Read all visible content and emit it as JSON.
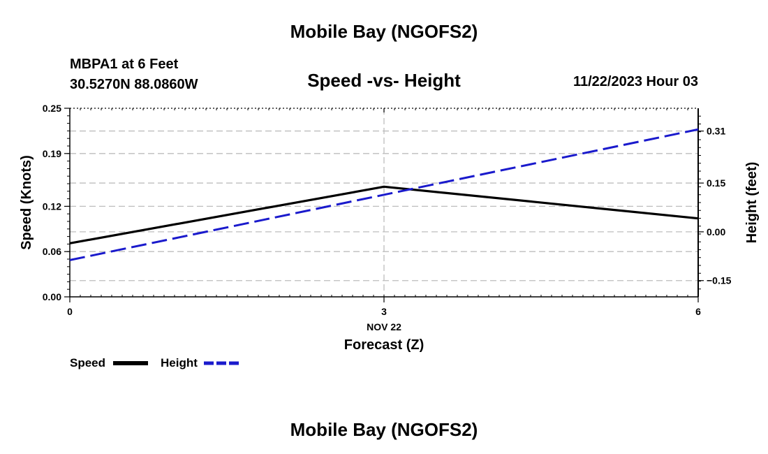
{
  "page": {
    "title": "Mobile Bay (NGOFS2)",
    "title_repeat": "Mobile Bay (NGOFS2)",
    "station_line1": "MBPA1 at 6 Feet",
    "station_line2": "30.5270N  88.0860W",
    "datetime": "11/22/2023 Hour 03"
  },
  "chart_data": {
    "type": "line",
    "title": "Speed -vs- Height",
    "xlabel": "Forecast (Z)",
    "x_date_label": "NOV 22",
    "ylabel_left": "Speed (Knots)",
    "ylabel_right": "Height (feet)",
    "xlim": [
      0,
      6
    ],
    "ylim_left": [
      0,
      0.25
    ],
    "ylim_right": [
      -0.2,
      0.38
    ],
    "x_ticks": [
      0,
      3,
      6
    ],
    "x_tick_labels": [
      "0",
      "3",
      "6"
    ],
    "y_left_ticks": [
      0.0,
      0.06,
      0.12,
      0.19,
      0.25
    ],
    "y_left_tick_labels": [
      "0.00",
      "0.06",
      "0.12",
      "0.19",
      "0.25"
    ],
    "y_right_ticks": [
      -0.15,
      0.0,
      0.15,
      0.31
    ],
    "y_right_tick_labels": [
      "−0.15",
      "0.00",
      "0.15",
      "0.31"
    ],
    "grid": true,
    "legend_position": "bottom-left",
    "series": [
      {
        "name": "Speed",
        "axis": "left",
        "color": "#000000",
        "style": "solid",
        "x": [
          0,
          3,
          6
        ],
        "values": [
          0.071,
          0.146,
          0.104
        ]
      },
      {
        "name": "Height",
        "axis": "right",
        "color": "#1a1acc",
        "style": "dashed",
        "x": [
          0,
          6
        ],
        "values": [
          -0.087,
          0.315
        ]
      }
    ]
  }
}
